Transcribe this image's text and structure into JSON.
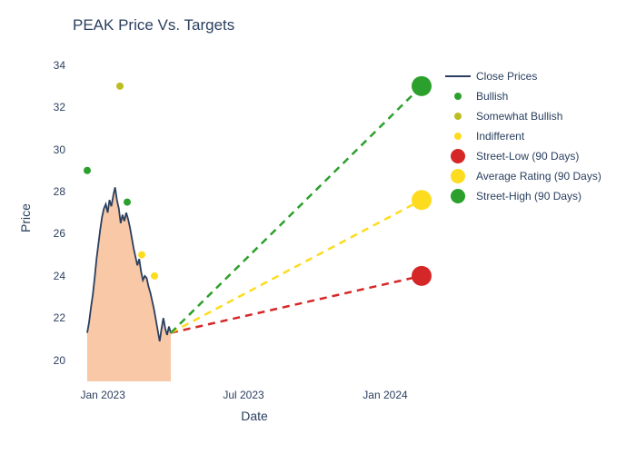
{
  "title": "PEAK Price Vs. Targets",
  "x_axis": {
    "label": "Date",
    "ticks": [
      {
        "pos": 0.083,
        "label": "Jan 2023"
      },
      {
        "pos": 0.47,
        "label": "Jul 2023"
      },
      {
        "pos": 0.86,
        "label": "Jan 2024"
      }
    ]
  },
  "y_axis": {
    "label": "Price",
    "min": 19,
    "max": 34.5,
    "ticks": [
      20,
      22,
      24,
      26,
      28,
      30,
      32,
      34
    ]
  },
  "close_prices": {
    "color": "#2a3f5f",
    "fill_color": "#f5b58a",
    "fill_opacity": 0.75,
    "x_start": 0.04,
    "x_end": 0.27,
    "points": [
      21.3,
      21.8,
      22.5,
      23.1,
      23.9,
      24.8,
      25.5,
      26.2,
      26.8,
      27.2,
      27.4,
      27.0,
      27.6,
      27.3,
      27.8,
      28.2,
      27.6,
      27.2,
      26.5,
      26.9,
      26.6,
      27.0,
      26.7,
      26.3,
      25.8,
      25.3,
      24.9,
      24.5,
      24.8,
      24.2,
      23.8,
      24.0,
      23.9,
      23.5,
      23.2,
      22.8,
      22.4,
      21.9,
      21.4,
      20.9,
      21.5,
      22.0,
      21.5,
      21.2,
      21.6,
      21.3
    ]
  },
  "scatter_points": [
    {
      "x": 0.04,
      "y": 29.0,
      "color": "#2ca02c",
      "size": 8
    },
    {
      "x": 0.13,
      "y": 33.0,
      "color": "#bcbd22",
      "size": 8
    },
    {
      "x": 0.15,
      "y": 27.5,
      "color": "#2ca02c",
      "size": 8
    },
    {
      "x": 0.19,
      "y": 25.0,
      "color": "#fddc1f",
      "size": 8
    },
    {
      "x": 0.225,
      "y": 24.0,
      "color": "#fddc1f",
      "size": 8
    }
  ],
  "projections": [
    {
      "name": "street-low",
      "y_start": 21.3,
      "y_end": 24.0,
      "color": "#d62728",
      "dash": "8,6"
    },
    {
      "name": "average",
      "y_start": 21.3,
      "y_end": 27.6,
      "color": "#fddc1f",
      "dash": "8,6"
    },
    {
      "name": "street-high",
      "y_start": 21.3,
      "y_end": 33.0,
      "color": "#2ca02c",
      "dash": "8,6"
    }
  ],
  "projection_x_start": 0.27,
  "projection_x_end": 0.96,
  "target_dots": [
    {
      "y": 24.0,
      "color": "#d62728"
    },
    {
      "y": 27.6,
      "color": "#fddc1f"
    },
    {
      "y": 33.0,
      "color": "#2ca02c"
    }
  ],
  "legend": [
    {
      "type": "line",
      "label": "Close Prices",
      "color": "#2a3f5f"
    },
    {
      "type": "dot",
      "label": "Bullish",
      "color": "#2ca02c"
    },
    {
      "type": "dot",
      "label": "Somewhat Bullish",
      "color": "#bcbd22"
    },
    {
      "type": "dot",
      "label": "Indifferent",
      "color": "#fddc1f"
    },
    {
      "type": "bigdot",
      "label": "Street-Low (90 Days)",
      "color": "#d62728"
    },
    {
      "type": "bigdot",
      "label": "Average Rating (90 Days)",
      "color": "#fddc1f"
    },
    {
      "type": "bigdot",
      "label": "Street-High (90 Days)",
      "color": "#2ca02c"
    }
  ]
}
